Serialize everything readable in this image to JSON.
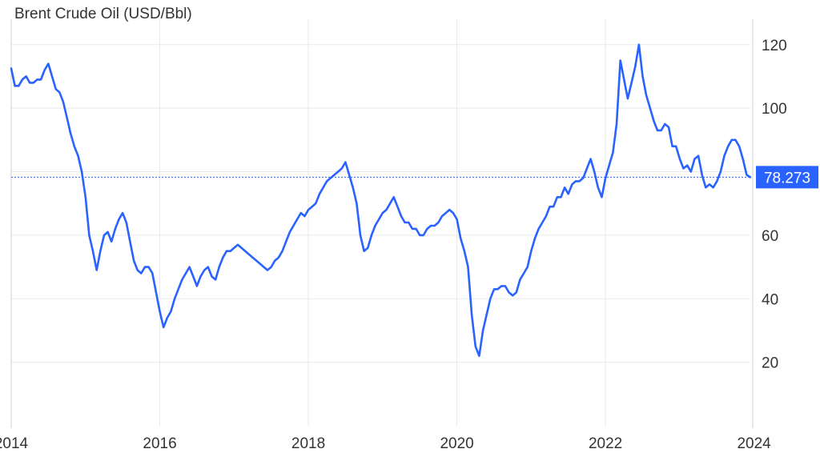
{
  "chart_data": {
    "type": "line",
    "title": "Brent Crude Oil (USD/Bbl)",
    "xlabel": "",
    "ylabel": "",
    "x_range": [
      2014.0,
      2023.95
    ],
    "ylim": [
      0,
      128
    ],
    "x_ticks": [
      {
        "value": 2014,
        "label": "2014"
      },
      {
        "value": 2016,
        "label": "2016"
      },
      {
        "value": 2018,
        "label": "2018"
      },
      {
        "value": 2020,
        "label": "2020"
      },
      {
        "value": 2022,
        "label": "2022"
      },
      {
        "value": 2024,
        "label": "2024"
      }
    ],
    "y_ticks": [
      {
        "value": 20,
        "label": "20"
      },
      {
        "value": 40,
        "label": "40"
      },
      {
        "value": 60,
        "label": "60"
      },
      {
        "value": 80,
        "label": "80"
      },
      {
        "value": 100,
        "label": "100"
      },
      {
        "value": 120,
        "label": "120"
      }
    ],
    "grid": true,
    "y_axis_side": "right",
    "last_value": 78.273,
    "last_value_label": "78.273",
    "series": [
      {
        "color": "#2962ff",
        "x": [
          2014.0,
          2014.05,
          2014.1,
          2014.15,
          2014.2,
          2014.25,
          2014.3,
          2014.35,
          2014.4,
          2014.45,
          2014.5,
          2014.55,
          2014.6,
          2014.65,
          2014.7,
          2014.75,
          2014.8,
          2014.85,
          2014.9,
          2014.95,
          2015.0,
          2015.05,
          2015.1,
          2015.15,
          2015.2,
          2015.25,
          2015.3,
          2015.35,
          2015.4,
          2015.45,
          2015.5,
          2015.55,
          2015.6,
          2015.65,
          2015.7,
          2015.75,
          2015.8,
          2015.85,
          2015.9,
          2015.95,
          2016.0,
          2016.05,
          2016.1,
          2016.15,
          2016.2,
          2016.25,
          2016.3,
          2016.35,
          2016.4,
          2016.45,
          2016.5,
          2016.55,
          2016.6,
          2016.65,
          2016.7,
          2016.75,
          2016.8,
          2016.85,
          2016.9,
          2016.95,
          2017.0,
          2017.05,
          2017.1,
          2017.15,
          2017.2,
          2017.25,
          2017.3,
          2017.35,
          2017.4,
          2017.45,
          2017.5,
          2017.55,
          2017.6,
          2017.65,
          2017.7,
          2017.75,
          2017.8,
          2017.85,
          2017.9,
          2017.95,
          2018.0,
          2018.05,
          2018.1,
          2018.15,
          2018.2,
          2018.25,
          2018.3,
          2018.35,
          2018.4,
          2018.45,
          2018.5,
          2018.55,
          2018.6,
          2018.65,
          2018.7,
          2018.75,
          2018.8,
          2018.85,
          2018.9,
          2018.95,
          2019.0,
          2019.05,
          2019.1,
          2019.15,
          2019.2,
          2019.25,
          2019.3,
          2019.35,
          2019.4,
          2019.45,
          2019.5,
          2019.55,
          2019.6,
          2019.65,
          2019.7,
          2019.75,
          2019.8,
          2019.85,
          2019.9,
          2019.95,
          2020.0,
          2020.05,
          2020.1,
          2020.15,
          2020.2,
          2020.25,
          2020.3,
          2020.35,
          2020.4,
          2020.45,
          2020.5,
          2020.55,
          2020.6,
          2020.65,
          2020.7,
          2020.75,
          2020.8,
          2020.85,
          2020.9,
          2020.95,
          2021.0,
          2021.05,
          2021.1,
          2021.15,
          2021.2,
          2021.25,
          2021.3,
          2021.35,
          2021.4,
          2021.45,
          2021.5,
          2021.55,
          2021.6,
          2021.65,
          2021.7,
          2021.75,
          2021.8,
          2021.85,
          2021.9,
          2021.95,
          2022.0,
          2022.05,
          2022.1,
          2022.15,
          2022.2,
          2022.25,
          2022.3,
          2022.35,
          2022.4,
          2022.45,
          2022.5,
          2022.55,
          2022.6,
          2022.65,
          2022.7,
          2022.75,
          2022.8,
          2022.85,
          2022.9,
          2022.95,
          2023.0,
          2023.05,
          2023.1,
          2023.15,
          2023.2,
          2023.25,
          2023.3,
          2023.35,
          2023.4,
          2023.45,
          2023.5,
          2023.55,
          2023.6,
          2023.65,
          2023.7,
          2023.75,
          2023.8,
          2023.85,
          2023.9,
          2023.95
        ],
        "y": [
          112.5,
          107,
          107,
          109,
          110,
          108,
          108,
          109,
          109,
          112,
          114,
          110,
          106,
          105,
          102,
          97,
          92,
          88,
          85,
          80,
          72,
          60,
          55,
          49,
          55,
          60,
          61,
          58,
          62,
          65,
          67,
          64,
          58,
          52,
          49,
          48,
          50,
          50,
          48,
          42,
          36,
          31,
          34,
          36,
          40,
          43,
          46,
          48,
          50,
          47,
          44,
          47,
          49,
          50,
          47,
          46,
          50,
          53,
          55,
          55,
          56,
          57,
          56,
          55,
          54,
          53,
          52,
          51,
          50,
          49,
          50,
          52,
          53,
          55,
          58,
          61,
          63,
          65,
          67,
          66,
          68,
          69,
          70,
          73,
          75,
          77,
          78,
          79,
          80,
          81,
          83,
          79,
          75,
          70,
          60,
          55,
          56,
          60,
          63,
          65,
          67,
          68,
          70,
          72,
          69,
          66,
          64,
          64,
          62,
          62,
          60,
          60,
          62,
          63,
          63,
          64,
          66,
          67,
          68,
          67,
          65,
          59,
          55,
          50,
          35,
          25,
          22,
          30,
          35,
          40,
          43,
          43,
          44,
          44,
          42,
          41,
          42,
          46,
          48,
          50,
          55,
          59,
          62,
          64,
          66,
          69,
          69,
          72,
          72,
          75,
          73,
          76,
          77,
          77,
          78,
          81,
          84,
          80,
          75,
          72,
          78,
          82,
          86,
          95,
          115,
          109,
          103,
          108,
          113,
          120,
          110,
          104,
          100,
          96,
          93,
          93,
          95,
          94,
          88,
          88,
          84,
          81,
          82,
          80,
          84,
          85,
          79,
          75,
          76,
          75,
          77,
          80,
          85,
          88,
          90,
          90,
          88,
          84,
          79,
          78.273
        ]
      }
    ]
  }
}
